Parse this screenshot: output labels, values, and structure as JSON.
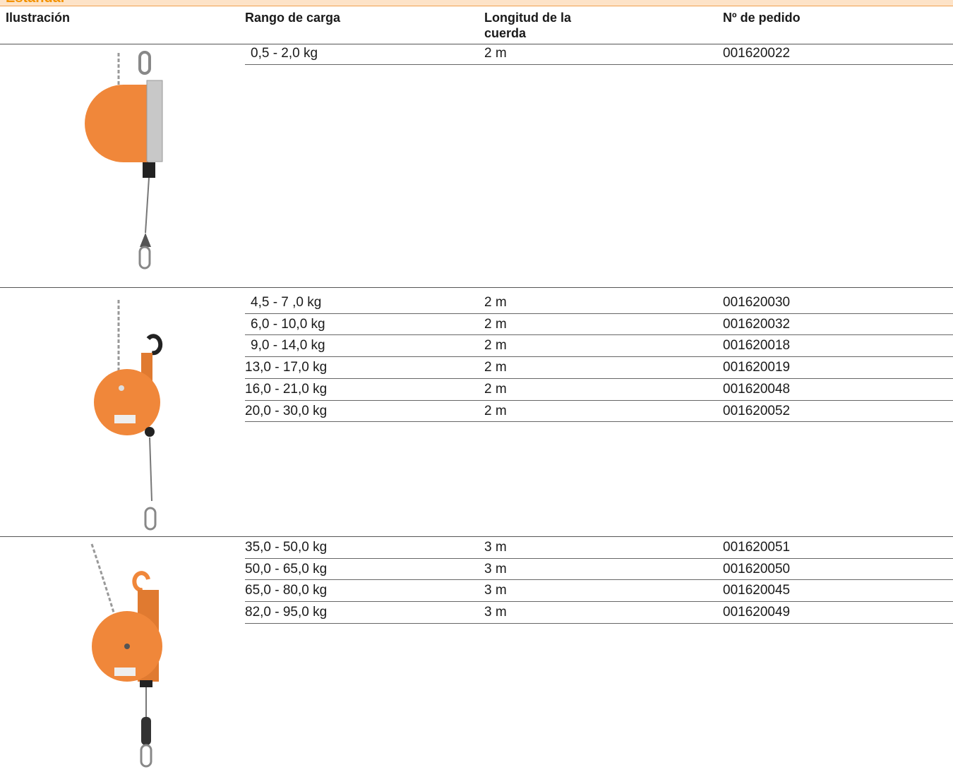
{
  "header": {
    "title": "Estándar",
    "columns": [
      "Ilustración",
      "Rango de carga",
      "Longitud de la cuerda",
      "Nº de pedido"
    ]
  },
  "table": {
    "groups": [
      {
        "rows": [
          [
            "0,5 - 2,0 kg",
            "2 m",
            "001620022"
          ]
        ]
      },
      {
        "rows": [
          [
            "4,5 - 7 ,0 kg",
            "2 m",
            "001620030"
          ],
          [
            "6,0 - 10,0 kg",
            "2 m",
            "001620032"
          ],
          [
            "9,0 - 14,0 kg",
            "2 m",
            "001620018"
          ],
          [
            "13,0 - 17,0 kg",
            "2 m",
            "001620019"
          ],
          [
            "16,0 - 21,0 kg",
            "2 m",
            "001620048"
          ],
          [
            "20,0 - 30,0 kg",
            "2 m",
            "001620052"
          ]
        ]
      },
      {
        "rows": [
          [
            "35,0 - 50,0 kg",
            "3 m",
            "001620051"
          ],
          [
            "50,0 - 65,0 kg",
            "3 m",
            "001620050"
          ],
          [
            "65,0 - 80,0 kg",
            "3 m",
            "001620045"
          ],
          [
            "82,0 - 95,0 kg",
            "3 m",
            "001620049"
          ]
        ]
      }
    ]
  }
}
